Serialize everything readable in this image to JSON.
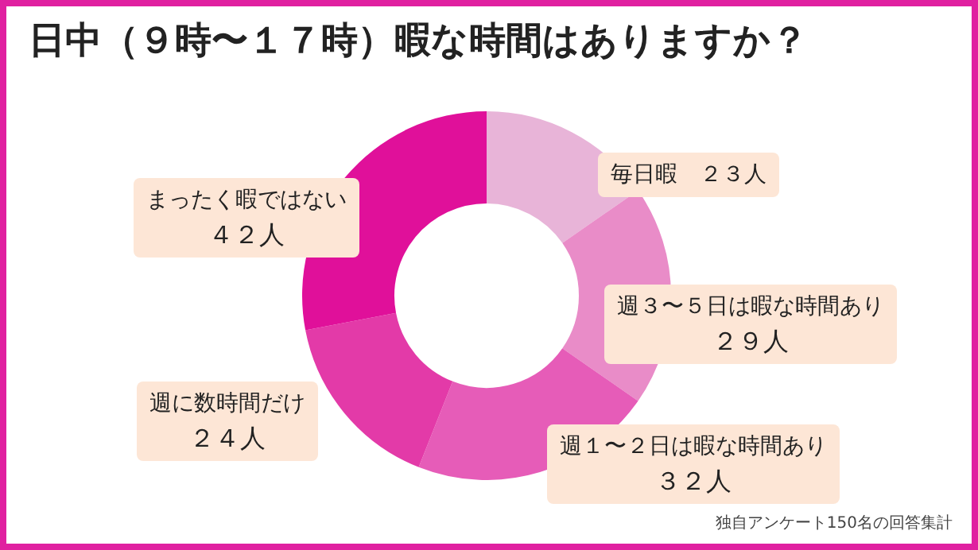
{
  "chart_data": {
    "type": "donut",
    "title": "日中（９時〜１７時）暇な時間はありますか？",
    "categories": [
      "毎日暇",
      "週３〜５日は暇な時間あり",
      "週１〜２日は暇な時間あり",
      "週に数時間だけ",
      "まったく暇ではない"
    ],
    "values": [
      23,
      29,
      32,
      24,
      42
    ],
    "value_labels": [
      "２３人",
      "２９人",
      "３２人",
      "２４人",
      "４２人"
    ],
    "colors": [
      "#e8b4d8",
      "#e98cc8",
      "#e65cb8",
      "#e33aa8",
      "#e0109a"
    ],
    "legend": false,
    "annotations": [
      "独自アンケート150名の回答集計"
    ]
  }
}
